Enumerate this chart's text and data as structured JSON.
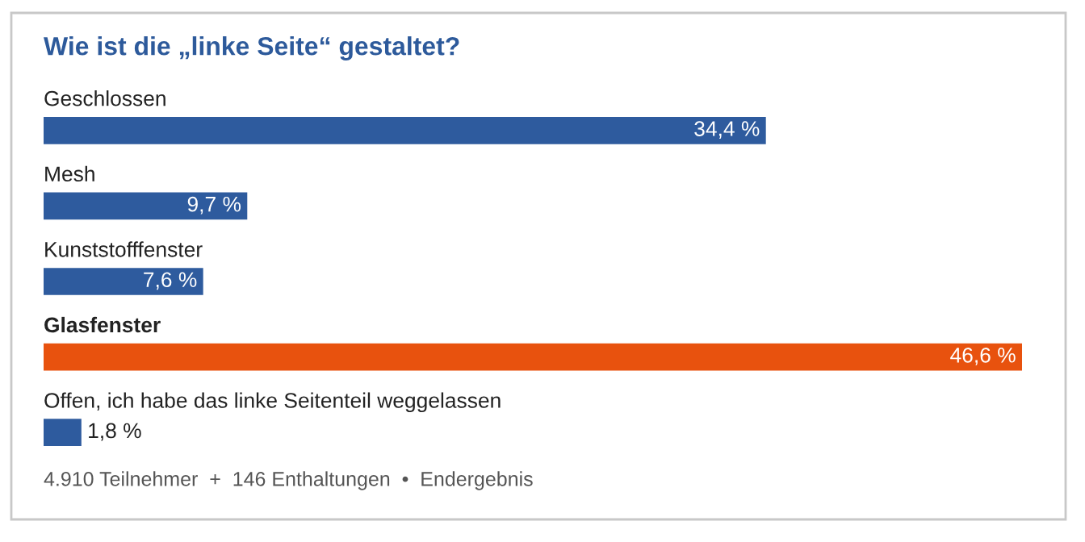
{
  "chart_data": {
    "type": "bar",
    "orientation": "horizontal",
    "title": "Wie ist die „linke Seite“ gestaltet?",
    "categories": [
      "Geschlossen",
      "Mesh",
      "Kunststofffenster",
      "Glasfenster",
      "Offen, ich habe das linke Seitenteil weggelassen"
    ],
    "values": [
      34.4,
      9.7,
      7.6,
      46.6,
      1.8
    ],
    "value_labels": [
      "34,4 %",
      "9,7 %",
      "7,6 %",
      "46,6 %",
      "1,8 %"
    ],
    "colors": [
      "#2e5b9e",
      "#2e5b9e",
      "#2e5b9e",
      "#e8520e",
      "#2e5b9e"
    ],
    "annotations": [
      "4.910 Teilnehmer  +  146 Enthaltungen  •  Endergebnis"
    ],
    "legend": false
  }
}
